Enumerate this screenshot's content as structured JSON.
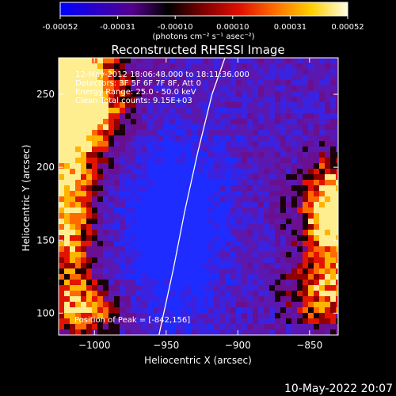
{
  "colorbar": {
    "ticks": [
      "-0.00052",
      "-0.00031",
      "-0.00010",
      "0.00010",
      "0.00031",
      "0.00052"
    ],
    "label": "(photons cm⁻² s⁻¹ asec⁻²)",
    "colors": [
      "#0000ff",
      "#2a00c8",
      "#55008c",
      "#000000",
      "#800000",
      "#e01000",
      "#ff7000",
      "#ffd000",
      "#ffffe8"
    ]
  },
  "info_lines": [
    "12-May-2012 18:06:48.000 to 18:11:36.000",
    "Detectors: 3F 5F 6F 7F 8F, Att 0",
    "Energy Range: 25.0 - 50.0 keV",
    "Clean    Total counts: 9.15E+03"
  ],
  "peak_text": "Position of Peak = [-842,156]",
  "footer_date": "10-May-2022 20:07",
  "chart_data": {
    "type": "heatmap",
    "title": "Reconstructed RHESSI Image",
    "xlabel": "Heliocentric X (arcsec)",
    "ylabel": "Heliocentric Y (arcsec)",
    "xlim": [
      -1025,
      -830
    ],
    "ylim": [
      85,
      275
    ],
    "x_ticks": [
      -1000,
      -950,
      -900,
      -850
    ],
    "y_ticks": [
      100,
      150,
      200,
      250
    ],
    "x_tick_labels": [
      "−1000",
      "−950",
      "−900",
      "−850"
    ],
    "y_tick_labels": [
      "100",
      "150",
      "200",
      "250"
    ],
    "limb_curve": [
      [
        -955,
        85
      ],
      [
        -945,
        130
      ],
      [
        -937,
        170
      ],
      [
        -928,
        210
      ],
      [
        -918,
        250
      ],
      [
        -909,
        275
      ]
    ],
    "peak_position": [
      -842,
      156
    ],
    "value_range": [
      -0.00052,
      0.00052
    ]
  }
}
